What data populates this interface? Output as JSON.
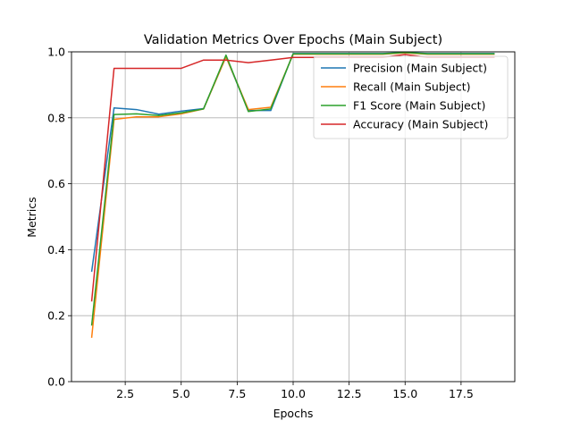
{
  "chart_data": {
    "type": "line",
    "title": "Validation Metrics Over Epochs (Main Subject)",
    "xlabel": "Epochs",
    "ylabel": "Metrics",
    "xlim": [
      0.1,
      19.9
    ],
    "ylim": [
      0.0,
      1.0
    ],
    "xticks": [
      2.5,
      5.0,
      7.5,
      10.0,
      12.5,
      15.0,
      17.5
    ],
    "xtick_labels": [
      "2.5",
      "5.0",
      "7.5",
      "10.0",
      "12.5",
      "15.0",
      "17.5"
    ],
    "yticks": [
      0.0,
      0.2,
      0.4,
      0.6,
      0.8,
      1.0
    ],
    "ytick_labels": [
      "0.0",
      "0.2",
      "0.4",
      "0.6",
      "0.8",
      "1.0"
    ],
    "grid": true,
    "legend_position": "top-right",
    "x": [
      1,
      2,
      3,
      4,
      5,
      6,
      7,
      8,
      9,
      10,
      11,
      12,
      13,
      14,
      15,
      16,
      17,
      18,
      19
    ],
    "series": [
      {
        "name": "Precision (Main Subject)",
        "color": "#1f77b4",
        "values": [
          0.333,
          0.83,
          0.825,
          0.811,
          0.82,
          0.828,
          0.985,
          0.822,
          0.822,
          0.995,
          0.995,
          0.995,
          0.995,
          0.995,
          0.998,
          0.995,
          0.995,
          0.995,
          0.995
        ]
      },
      {
        "name": "Recall (Main Subject)",
        "color": "#ff7f0e",
        "values": [
          0.133,
          0.795,
          0.803,
          0.803,
          0.812,
          0.827,
          0.985,
          0.825,
          0.832,
          0.993,
          0.993,
          0.993,
          0.993,
          0.993,
          0.997,
          0.993,
          0.993,
          0.993,
          0.993
        ]
      },
      {
        "name": "F1 Score (Main Subject)",
        "color": "#2ca02c",
        "values": [
          0.17,
          0.81,
          0.812,
          0.807,
          0.815,
          0.827,
          0.99,
          0.819,
          0.827,
          0.994,
          0.994,
          0.994,
          0.994,
          0.994,
          0.998,
          0.994,
          0.994,
          0.994,
          0.994
        ]
      },
      {
        "name": "Accuracy (Main Subject)",
        "color": "#d62728",
        "values": [
          0.243,
          0.95,
          0.95,
          0.95,
          0.95,
          0.975,
          0.975,
          0.967,
          0.975,
          0.983,
          0.983,
          0.983,
          0.983,
          0.983,
          0.992,
          0.983,
          0.983,
          0.983,
          0.983
        ]
      }
    ]
  }
}
